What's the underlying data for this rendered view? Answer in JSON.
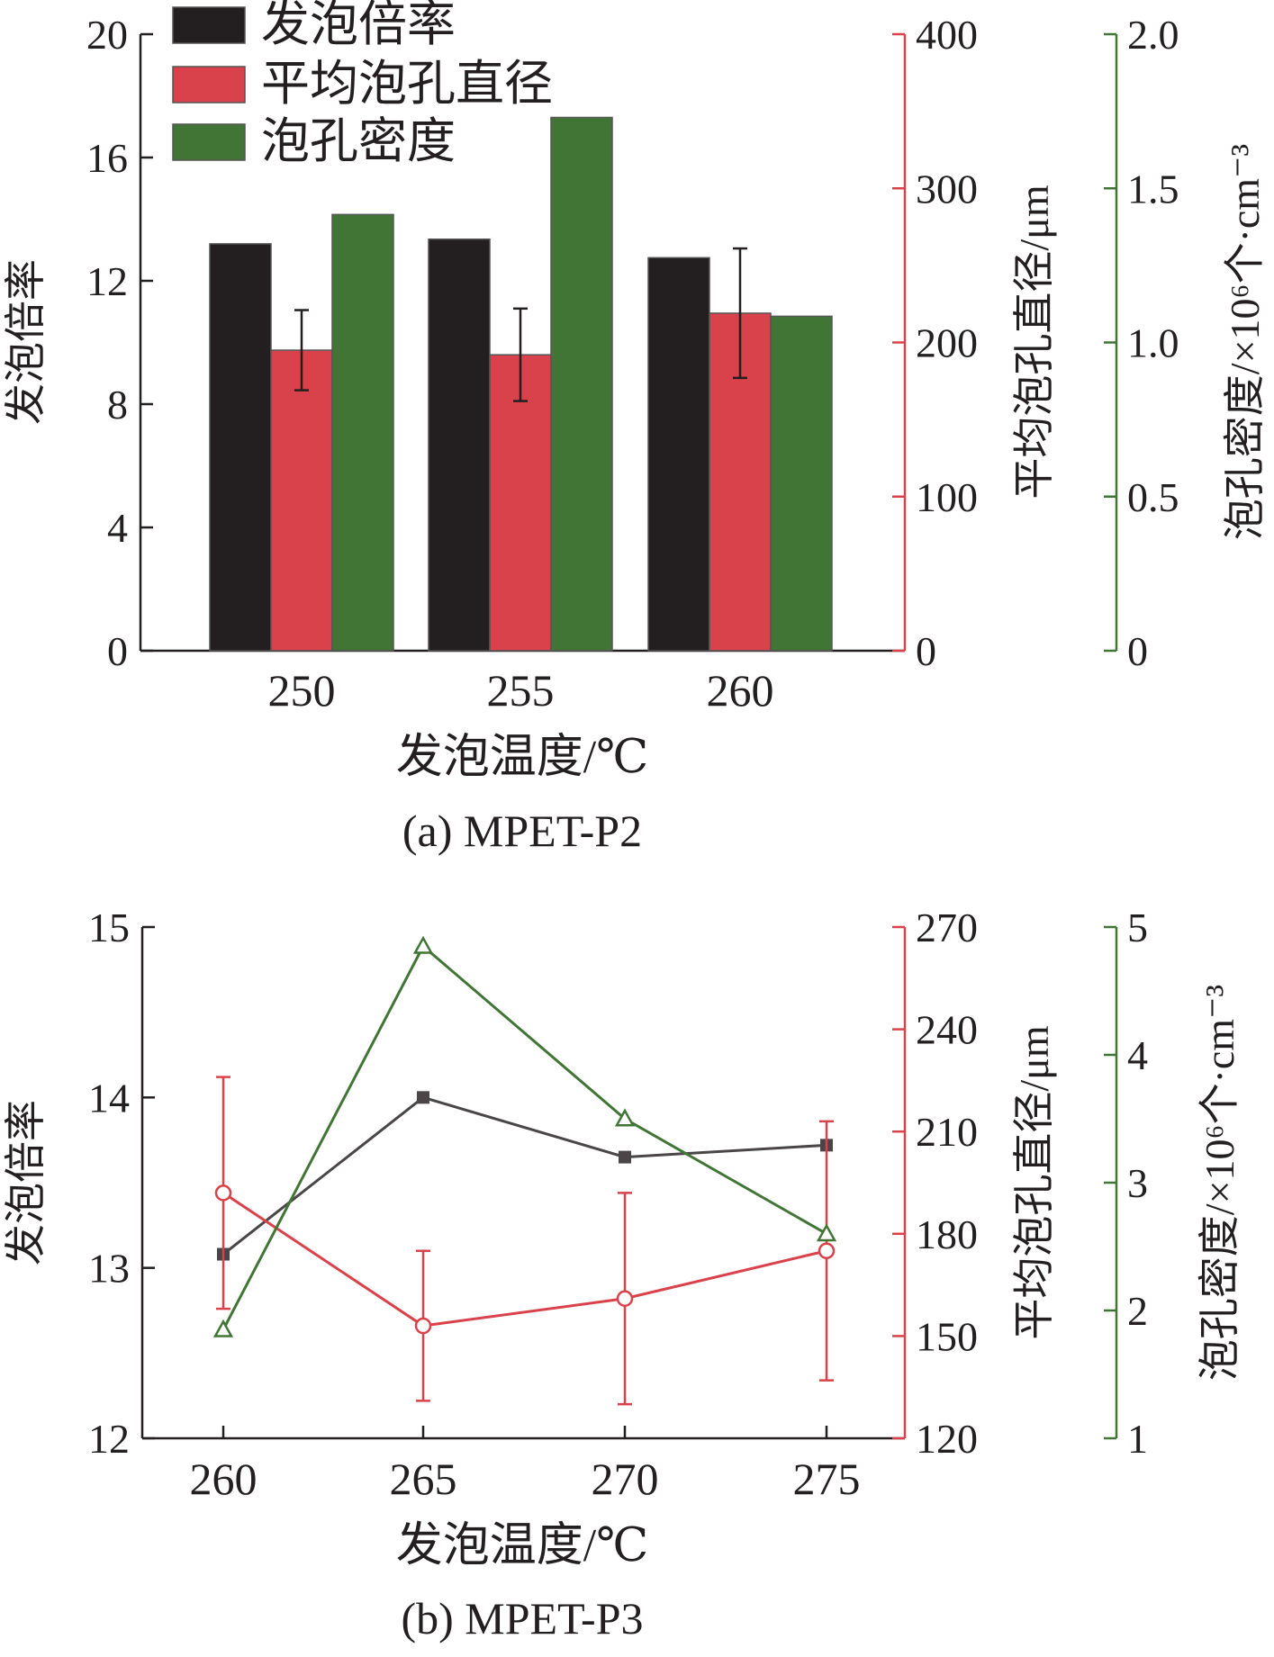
{
  "colors": {
    "black_series": "#231f20",
    "red_series": "#d9424a",
    "green_series": "#417535",
    "axis_text": "#231f20",
    "line_black": "#4a4547"
  },
  "chart_data": [
    {
      "type": "bar",
      "caption": "(a) MPET-P2",
      "xlabel": "发泡温度/℃",
      "categories": [
        "250",
        "255",
        "260"
      ],
      "legend_position": "top-left",
      "grid": false,
      "axes": {
        "left": {
          "label": "发泡倍率",
          "ylim": [
            0,
            20
          ],
          "ticks": [
            "0",
            "4",
            "8",
            "12",
            "16",
            "20"
          ]
        },
        "right1": {
          "label": "平均泡孔直径/μm",
          "ylim": [
            0,
            400
          ],
          "ticks": [
            "0",
            "100",
            "200",
            "300",
            "400"
          ]
        },
        "right2": {
          "label": "泡孔密度/×10⁶个·cm⁻³",
          "ylim": [
            0,
            2.0
          ],
          "ticks": [
            "0",
            "0.5",
            "1.0",
            "1.5",
            "2.0"
          ]
        }
      },
      "series": [
        {
          "name": "发泡倍率",
          "axis": "left",
          "color": "black_series",
          "values": [
            13.2,
            13.35,
            12.75
          ]
        },
        {
          "name": "平均泡孔直径",
          "axis": "right1",
          "color": "red_series",
          "values": [
            195,
            192,
            219
          ],
          "errors": [
            26,
            30,
            42
          ]
        },
        {
          "name": "泡孔密度",
          "axis": "right2",
          "color": "green_series",
          "values": [
            1.415,
            1.73,
            1.085
          ]
        }
      ]
    },
    {
      "type": "line",
      "caption": "(b) MPET-P3",
      "xlabel": "发泡温度/℃",
      "x": [
        "260",
        "265",
        "270",
        "275"
      ],
      "grid": false,
      "axes": {
        "left": {
          "label": "发泡倍率",
          "ylim": [
            12,
            15
          ],
          "ticks": [
            "12",
            "13",
            "14",
            "15"
          ]
        },
        "right1": {
          "label": "平均泡孔直径/μm",
          "ylim": [
            120,
            270
          ],
          "ticks": [
            "120",
            "150",
            "180",
            "210",
            "240",
            "270"
          ]
        },
        "right2": {
          "label": "泡孔密度/×10⁶个·cm⁻³",
          "ylim": [
            1,
            5
          ],
          "ticks": [
            "1",
            "2",
            "3",
            "4",
            "5"
          ]
        }
      },
      "series": [
        {
          "axis": "left",
          "marker": "filled-square",
          "color": "line_black",
          "values": [
            13.08,
            14.0,
            13.65,
            13.72
          ]
        },
        {
          "axis": "right1",
          "marker": "open-circle",
          "color": "red_series",
          "values": [
            192,
            153,
            161,
            175
          ],
          "errors": [
            34,
            22,
            31,
            38
          ]
        },
        {
          "axis": "right2",
          "marker": "open-triangle",
          "color": "green_series",
          "values": [
            1.85,
            4.85,
            3.5,
            2.6
          ]
        }
      ]
    }
  ]
}
